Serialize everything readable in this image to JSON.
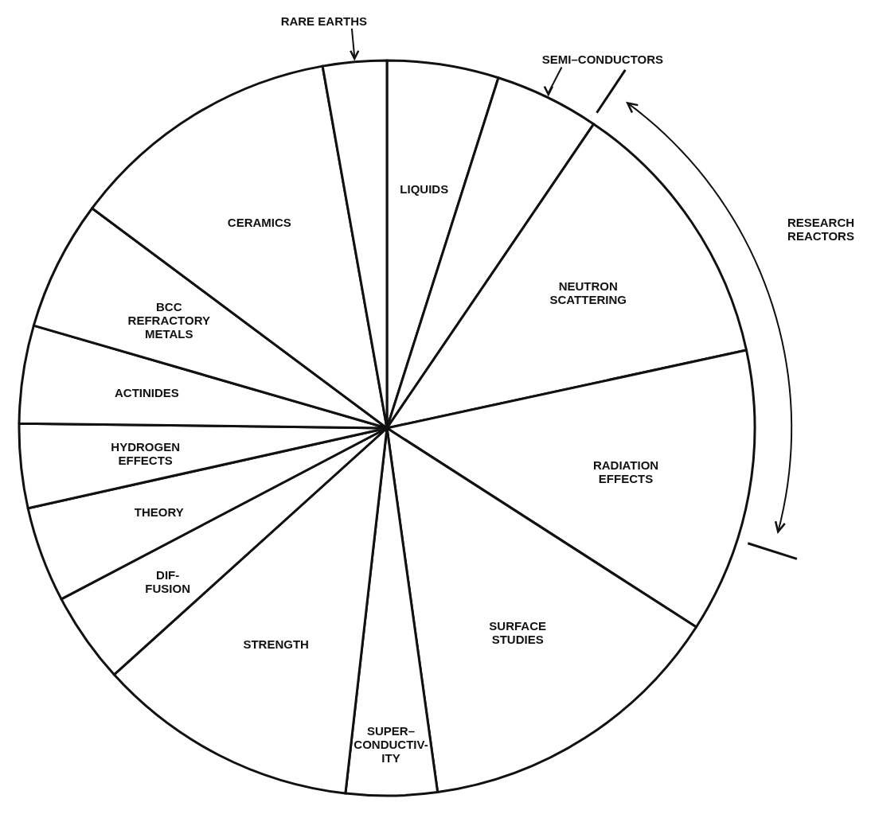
{
  "chart_data": {
    "type": "pie",
    "categories": [
      "LIQUIDS",
      "SEMI–CONDUCTORS",
      "NEUTRON\nSCATTERING",
      "RADIATION\nEFFECTS",
      "SURFACE\nSTUDIES",
      "SUPER–\nCONDUCTIV-\nITY",
      "STRENGTH",
      "DIF-\nFUSION",
      "THEORY",
      "HYDROGEN\nEFFECTS",
      "ACTINIDES",
      "BCC\nREFRACTORY\nMETALS",
      "CERAMICS",
      "RARE EARTHS"
    ],
    "values": [
      4.9,
      4.6,
      12.1,
      12.5,
      13.7,
      4.0,
      11.5,
      4.0,
      4.2,
      3.7,
      4.3,
      5.7,
      12.0,
      2.8
    ],
    "colors": [
      "#ffffff",
      "#ffffff",
      "#ffffff",
      "#ffffff",
      "#ffffff",
      "#ffffff",
      "#ffffff",
      "#ffffff",
      "#ffffff",
      "#ffffff",
      "#ffffff",
      "#ffffff",
      "#ffffff",
      "#ffffff"
    ],
    "annotations": [
      "RESEARCH\nREACTORS"
    ]
  }
}
